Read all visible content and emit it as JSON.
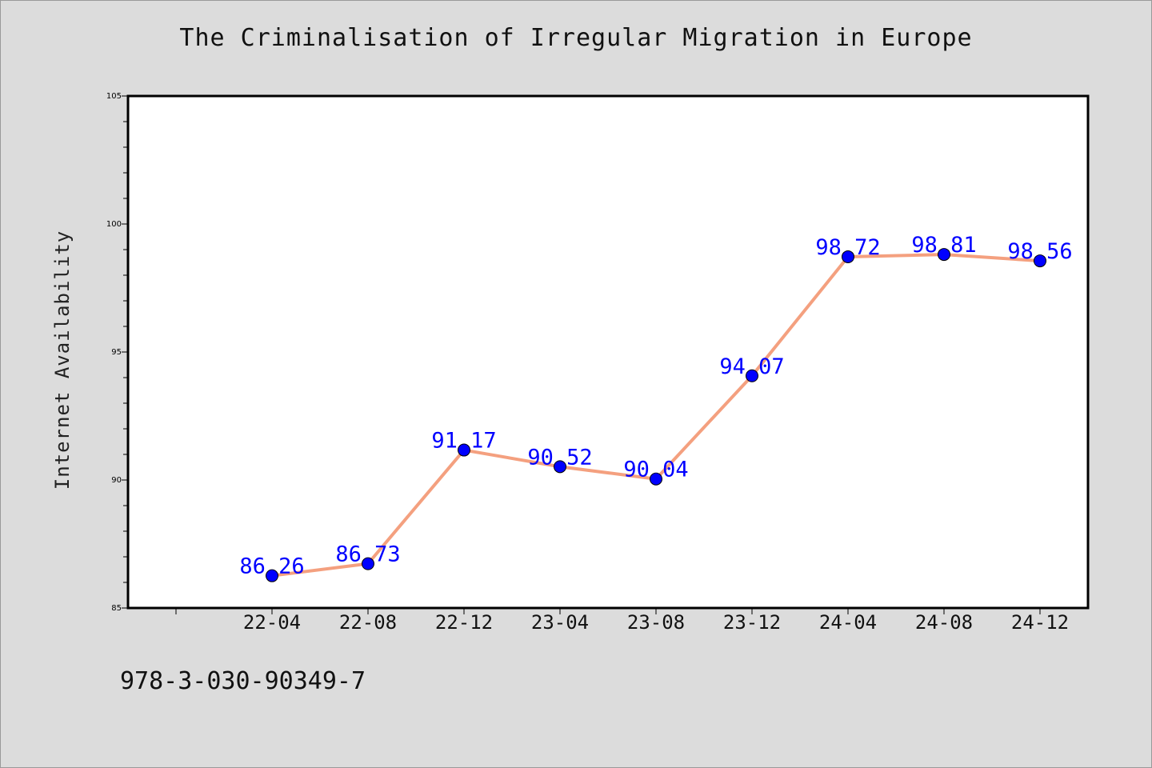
{
  "chart_data": {
    "type": "line",
    "title": "The Criminalisation of Irregular Migration in Europe",
    "xlabel": "",
    "ylabel": "Internet Availability",
    "categories": [
      "22-04",
      "22-08",
      "22-12",
      "23-04",
      "23-08",
      "23-12",
      "24-04",
      "24-08",
      "24-12"
    ],
    "values": [
      86.26,
      86.73,
      91.17,
      90.52,
      90.04,
      94.07,
      98.72,
      98.81,
      98.56
    ],
    "data_labels": [
      "86.26",
      "86.73",
      "91.17",
      "90.52",
      "90.04",
      "94.07",
      "98.72",
      "98.81",
      "98.56"
    ],
    "ylim": [
      85,
      105
    ],
    "yticks": [
      "85",
      "90",
      "95",
      "100",
      "105"
    ],
    "grid": false,
    "line_color": "#f4a07f",
    "marker_color": "#0000ff",
    "label_color": "#0000ff"
  },
  "footer": {
    "id_text": "978-3-030-90349-7"
  }
}
